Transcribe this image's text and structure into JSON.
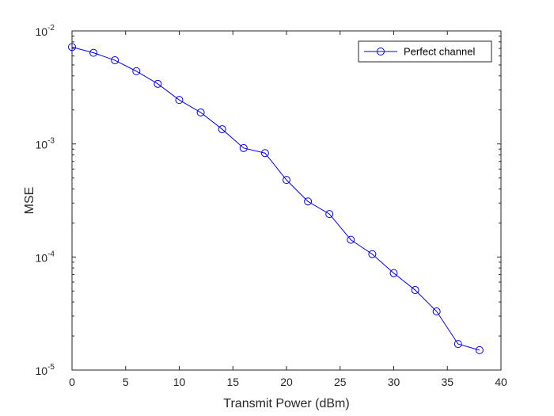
{
  "chart_data": {
    "type": "line",
    "xlabel": "Transmit Power (dBm)",
    "ylabel": "MSE",
    "xlim": [
      0,
      40
    ],
    "ylim": [
      1e-05,
      0.01
    ],
    "yscale": "log",
    "grid": false,
    "legend_position": "top-right",
    "x_ticks": [
      "0",
      "5",
      "10",
      "15",
      "20",
      "25",
      "30",
      "35",
      "40"
    ],
    "y_ticks": [
      {
        "base": "10",
        "exp": "-5"
      },
      {
        "base": "10",
        "exp": "-4"
      },
      {
        "base": "10",
        "exp": "-3"
      },
      {
        "base": "10",
        "exp": "-2"
      }
    ],
    "series": [
      {
        "name": "Perfect channel",
        "color": "#0000ff",
        "marker": "circle",
        "x": [
          0,
          2,
          4,
          6,
          8,
          10,
          12,
          14,
          16,
          18,
          20,
          22,
          24,
          26,
          28,
          30,
          32,
          34,
          36,
          38
        ],
        "y": [
          0.0072,
          0.0064,
          0.0055,
          0.0044,
          0.0034,
          0.00245,
          0.0019,
          0.00135,
          0.00092,
          0.00083,
          0.00048,
          0.00031,
          0.00024,
          0.000142,
          0.000106,
          7.2e-05,
          5.1e-05,
          3.3e-05,
          1.7e-05,
          1.5e-05
        ]
      }
    ]
  }
}
